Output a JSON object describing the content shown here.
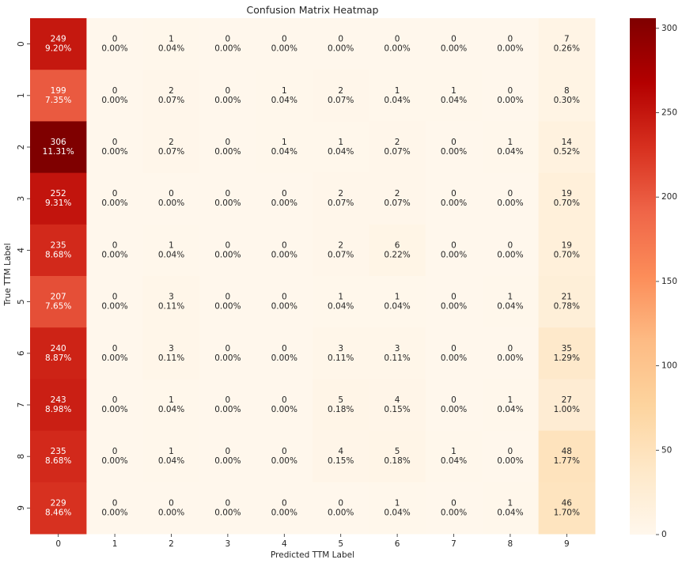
{
  "chart_data": {
    "type": "heatmap",
    "title": "Confusion Matrix Heatmap",
    "xlabel": "Predicted TTM Label",
    "ylabel": "True TTM Label",
    "x_categories": [
      "0",
      "1",
      "2",
      "3",
      "4",
      "5",
      "6",
      "7",
      "8",
      "9"
    ],
    "y_categories": [
      "0",
      "1",
      "2",
      "3",
      "4",
      "5",
      "6",
      "7",
      "8",
      "9"
    ],
    "values": [
      [
        249,
        0,
        1,
        0,
        0,
        0,
        0,
        0,
        0,
        7
      ],
      [
        199,
        0,
        2,
        0,
        1,
        2,
        1,
        1,
        0,
        8
      ],
      [
        306,
        0,
        2,
        0,
        1,
        1,
        2,
        0,
        1,
        14
      ],
      [
        252,
        0,
        0,
        0,
        0,
        2,
        2,
        0,
        0,
        19
      ],
      [
        235,
        0,
        1,
        0,
        0,
        2,
        6,
        0,
        0,
        19
      ],
      [
        207,
        0,
        3,
        0,
        0,
        1,
        1,
        0,
        1,
        21
      ],
      [
        240,
        0,
        3,
        0,
        0,
        3,
        3,
        0,
        0,
        35
      ],
      [
        243,
        0,
        1,
        0,
        0,
        5,
        4,
        0,
        1,
        27
      ],
      [
        235,
        0,
        1,
        0,
        0,
        4,
        5,
        1,
        0,
        48
      ],
      [
        229,
        0,
        0,
        0,
        0,
        0,
        1,
        0,
        1,
        46
      ]
    ],
    "percent_labels": [
      [
        "9.20%",
        "0.00%",
        "0.04%",
        "0.00%",
        "0.00%",
        "0.00%",
        "0.00%",
        "0.00%",
        "0.00%",
        "0.26%"
      ],
      [
        "7.35%",
        "0.00%",
        "0.07%",
        "0.00%",
        "0.04%",
        "0.07%",
        "0.04%",
        "0.04%",
        "0.00%",
        "0.30%"
      ],
      [
        "11.31%",
        "0.00%",
        "0.07%",
        "0.00%",
        "0.04%",
        "0.04%",
        "0.07%",
        "0.00%",
        "0.04%",
        "0.52%"
      ],
      [
        "9.31%",
        "0.00%",
        "0.00%",
        "0.00%",
        "0.00%",
        "0.07%",
        "0.07%",
        "0.00%",
        "0.00%",
        "0.70%"
      ],
      [
        "8.68%",
        "0.00%",
        "0.04%",
        "0.00%",
        "0.00%",
        "0.07%",
        "0.22%",
        "0.00%",
        "0.00%",
        "0.70%"
      ],
      [
        "7.65%",
        "0.00%",
        "0.11%",
        "0.00%",
        "0.00%",
        "0.04%",
        "0.04%",
        "0.00%",
        "0.04%",
        "0.78%"
      ],
      [
        "8.87%",
        "0.00%",
        "0.11%",
        "0.00%",
        "0.00%",
        "0.11%",
        "0.11%",
        "0.00%",
        "0.00%",
        "1.29%"
      ],
      [
        "8.98%",
        "0.00%",
        "0.04%",
        "0.00%",
        "0.00%",
        "0.18%",
        "0.15%",
        "0.00%",
        "0.04%",
        "1.00%"
      ],
      [
        "8.68%",
        "0.00%",
        "0.04%",
        "0.00%",
        "0.00%",
        "0.15%",
        "0.18%",
        "0.04%",
        "0.00%",
        "1.77%"
      ],
      [
        "8.46%",
        "0.00%",
        "0.00%",
        "0.00%",
        "0.00%",
        "0.00%",
        "0.04%",
        "0.00%",
        "0.04%",
        "1.70%"
      ]
    ],
    "colorbar": {
      "range": [
        0,
        306
      ],
      "ticks": [
        0,
        50,
        100,
        150,
        200,
        250,
        300
      ],
      "colormap": "OrRd"
    },
    "colors": {
      "light_text": "#ffffff",
      "dark_text": "#262626"
    }
  }
}
